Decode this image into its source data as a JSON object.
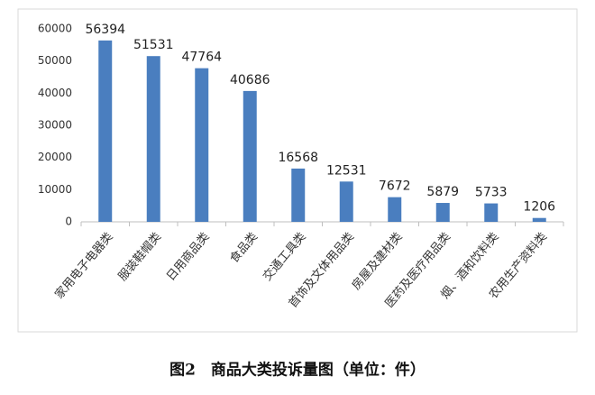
{
  "chart_data": {
    "type": "bar",
    "title": "图2　商品大类投诉量图（单位：件）",
    "categories": [
      "家用电子电器类",
      "服装鞋帽类",
      "日用商品类",
      "食品类",
      "交通工具类",
      "首饰及文体用品类",
      "房屋及建材类",
      "医药及医疗用品类",
      "烟、酒和饮料类",
      "农用生产资料类"
    ],
    "values": [
      56394,
      51531,
      47764,
      40686,
      16568,
      12531,
      7672,
      5879,
      5733,
      1206
    ],
    "color": "#4a7ebf",
    "ylim": [
      0,
      60000
    ],
    "yticks": [
      0,
      10000,
      20000,
      30000,
      40000,
      50000,
      60000
    ],
    "grid": false
  }
}
